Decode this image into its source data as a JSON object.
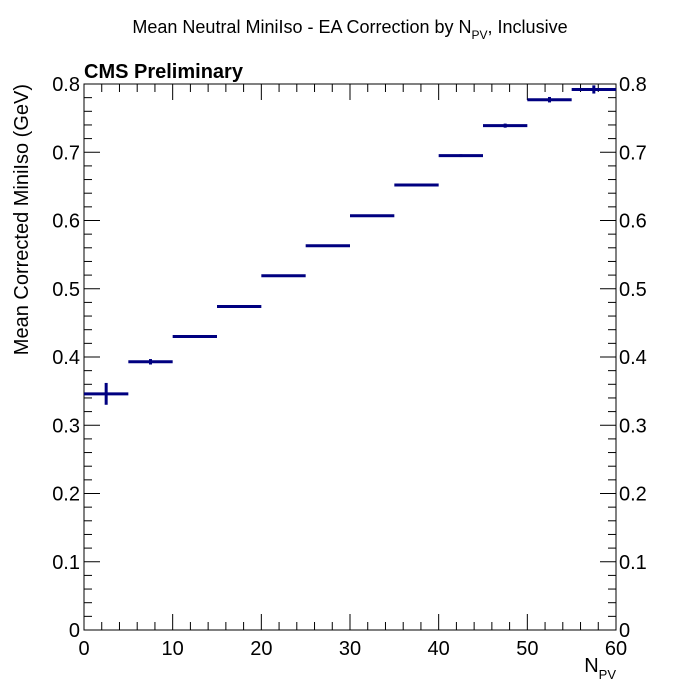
{
  "chart_data": {
    "type": "scatter",
    "title_main": "Mean Neutral MiniIso - EA Correction by N",
    "title_sub": "PV",
    "title_tail": ", Inclusive",
    "annotation": "CMS Preliminary",
    "xlabel_main": "N",
    "xlabel_sub": "PV",
    "ylabel": "Mean Corrected MiniIso (GeV)",
    "xlim": [
      0,
      60
    ],
    "ylim": [
      0,
      0.8
    ],
    "x_ticks": [
      "0",
      "10",
      "20",
      "30",
      "40",
      "50",
      "60"
    ],
    "y_ticks": [
      "0",
      "0.1",
      "0.2",
      "0.3",
      "0.4",
      "0.5",
      "0.6",
      "0.7",
      "0.8"
    ],
    "y_ticks_right": [
      "0",
      "0.1",
      "0.2",
      "0.3",
      "0.4",
      "0.5",
      "0.6",
      "0.7",
      "0.8"
    ],
    "grid": false,
    "colors": {
      "marker": "#000080",
      "axes": "#000000"
    },
    "points": [
      {
        "xlow": 0,
        "xhigh": 5,
        "y": 0.346,
        "yerr": 0.016
      },
      {
        "xlow": 5,
        "xhigh": 10,
        "y": 0.393,
        "yerr": 0.004
      },
      {
        "xlow": 10,
        "xhigh": 15,
        "y": 0.43,
        "yerr": 0.001
      },
      {
        "xlow": 15,
        "xhigh": 20,
        "y": 0.474,
        "yerr": 0.001
      },
      {
        "xlow": 20,
        "xhigh": 25,
        "y": 0.519,
        "yerr": 0.001
      },
      {
        "xlow": 25,
        "xhigh": 30,
        "y": 0.563,
        "yerr": 0.001
      },
      {
        "xlow": 30,
        "xhigh": 35,
        "y": 0.607,
        "yerr": 0.001
      },
      {
        "xlow": 35,
        "xhigh": 40,
        "y": 0.652,
        "yerr": 0.002
      },
      {
        "xlow": 40,
        "xhigh": 45,
        "y": 0.695,
        "yerr": 0.002
      },
      {
        "xlow": 45,
        "xhigh": 50,
        "y": 0.739,
        "yerr": 0.003
      },
      {
        "xlow": 50,
        "xhigh": 55,
        "y": 0.777,
        "yerr": 0.004
      },
      {
        "xlow": 55,
        "xhigh": 60,
        "y": 0.792,
        "yerr": 0.006
      }
    ]
  }
}
